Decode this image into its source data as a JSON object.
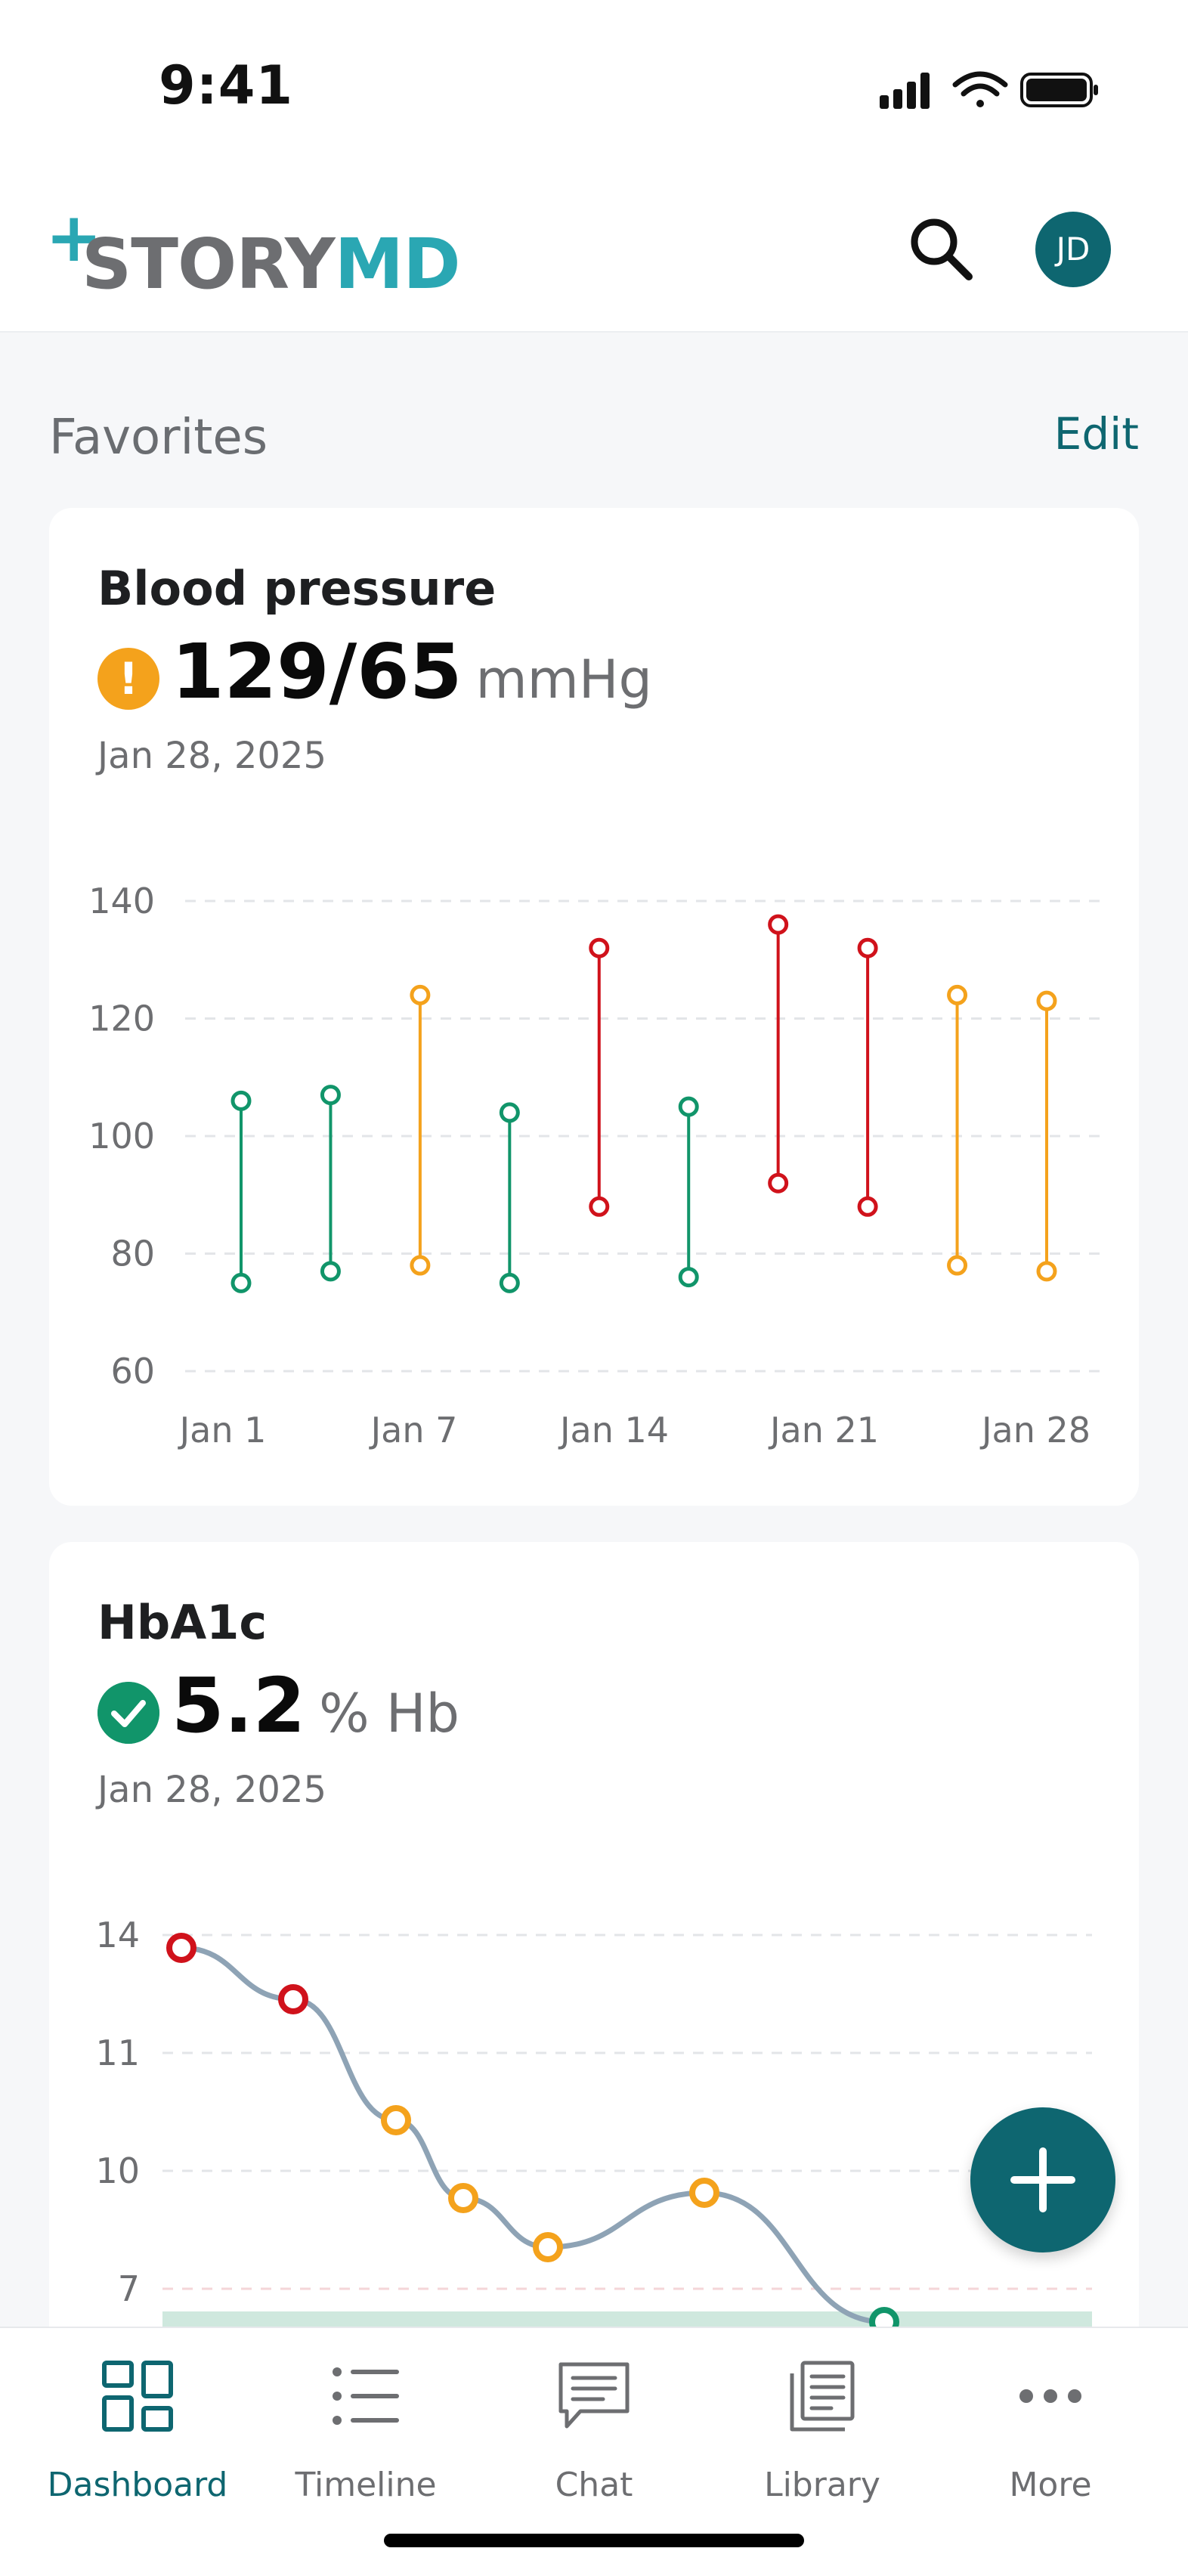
{
  "status_bar": {
    "time": "9:41",
    "icons": [
      "signal-icon",
      "wifi-icon",
      "battery-icon"
    ]
  },
  "header": {
    "logo_prefix": "STORY",
    "logo_suffix": "MD",
    "avatar_initials": "JD",
    "search_icon": "search-icon",
    "brand_colors": {
      "primary": "#0e6670",
      "accent": "#2aa7b3",
      "logo_gray": "#6d6e71"
    }
  },
  "favorites": {
    "title": "Favorites",
    "edit_label": "Edit"
  },
  "blood_pressure": {
    "title": "Blood pressure",
    "value": "129/65",
    "unit": "mmHg",
    "date": "Jan 28, 2025",
    "status": "warning",
    "status_color": "#f4a21c"
  },
  "hba1c": {
    "title": "HbA1c",
    "value": "5.2",
    "unit": "% Hb",
    "date": "Jan 28, 2025",
    "status": "ok",
    "status_color": "#11956a"
  },
  "chart_data": [
    {
      "type": "range",
      "title": "Blood pressure",
      "y_ticks": [
        140,
        120,
        100,
        80,
        60
      ],
      "ylim": [
        60,
        140
      ],
      "x_tick_labels": [
        "Jan 1",
        "Jan 7",
        "Jan 14",
        "Jan 21",
        "Jan 28"
      ],
      "grid": "dashed-horizontal",
      "colors": {
        "normal": "#11956a",
        "elevated": "#f4a21c",
        "high": "#d0121b"
      },
      "points": [
        {
          "high": 106,
          "low": 75,
          "status": "normal"
        },
        {
          "high": 107,
          "low": 77,
          "status": "normal"
        },
        {
          "high": 124,
          "low": 78,
          "status": "elevated"
        },
        {
          "high": 104,
          "low": 75,
          "status": "normal"
        },
        {
          "high": 132,
          "low": 88,
          "status": "high"
        },
        {
          "high": 105,
          "low": 76,
          "status": "normal"
        },
        {
          "high": 136,
          "low": 92,
          "status": "high"
        },
        {
          "high": 132,
          "low": 88,
          "status": "high"
        },
        {
          "high": 124,
          "low": 78,
          "status": "elevated"
        },
        {
          "high": 123,
          "low": 77,
          "status": "elevated"
        }
      ]
    },
    {
      "type": "line",
      "title": "HbA1c",
      "y_ticks": [
        14,
        11,
        10,
        7
      ],
      "grid": "dashed-horizontal",
      "target_band_color": "#cfe8de",
      "line_color": "#8ea3b5",
      "colors": {
        "normal": "#11956a",
        "elevated": "#f4a21c",
        "high": "#d0121b"
      },
      "points": [
        {
          "status": "high"
        },
        {
          "status": "high"
        },
        {
          "status": "elevated"
        },
        {
          "status": "elevated"
        },
        {
          "status": "elevated"
        },
        {
          "status": "elevated"
        },
        {
          "status": "normal"
        }
      ]
    }
  ],
  "fab": {
    "icon": "plus-icon"
  },
  "bottom_nav": {
    "items": [
      {
        "label": "Dashboard",
        "icon": "dashboard-icon",
        "active": true
      },
      {
        "label": "Timeline",
        "icon": "timeline-icon",
        "active": false
      },
      {
        "label": "Chat",
        "icon": "chat-icon",
        "active": false
      },
      {
        "label": "Library",
        "icon": "library-icon",
        "active": false
      },
      {
        "label": "More",
        "icon": "more-icon",
        "active": false
      }
    ]
  }
}
